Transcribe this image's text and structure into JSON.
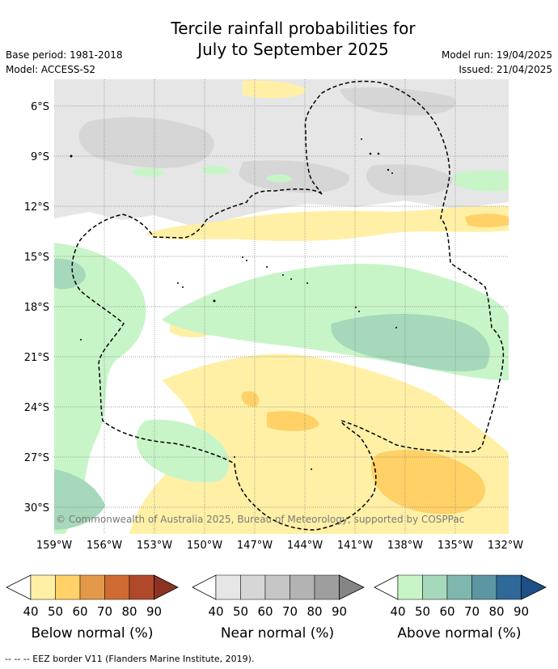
{
  "title_line1": "Tercile rainfall probabilities for",
  "title_line2": "July to September 2025",
  "base_period": "Base period: 1981-2018",
  "model": "Model: ACCESS-S2",
  "model_run": "Model run: 19/04/2025",
  "issued": "Issued: 21/04/2025",
  "copyright": "© Commonwealth of Australia 2025, Bureau of Meteorology, supported by COSPPac",
  "lat_labels": [
    "6°S",
    "9°S",
    "12°S",
    "15°S",
    "18°S",
    "21°S",
    "24°S",
    "27°S",
    "30°S"
  ],
  "lon_labels": [
    "159°W",
    "156°W",
    "153°W",
    "150°W",
    "147°W",
    "144°W",
    "141°W",
    "138°W",
    "135°W",
    "132°W"
  ],
  "colorbars": [
    {
      "label": "Below normal (%)",
      "ticks": [
        "40",
        "50",
        "60",
        "70",
        "80",
        "90"
      ],
      "colors": [
        "#fff0a6",
        "#ffd166",
        "#e3994a",
        "#cf6a33",
        "#b0492a",
        "#8c3222"
      ]
    },
    {
      "label": "Near normal (%)",
      "ticks": [
        "40",
        "50",
        "60",
        "70",
        "80",
        "90"
      ],
      "colors": [
        "#e6e6e6",
        "#d6d6d6",
        "#c6c6c6",
        "#b3b3b3",
        "#9e9e9e",
        "#858585"
      ]
    },
    {
      "label": "Above normal (%)",
      "ticks": [
        "40",
        "50",
        "60",
        "70",
        "80",
        "90"
      ],
      "colors": [
        "#c8f5c8",
        "#a6d8bb",
        "#7fb6ad",
        "#5c96a3",
        "#2f6999",
        "#1e4f86"
      ]
    }
  ],
  "footer": "--  --  -- EEZ border V11 (Flanders Marine Institute, 2019).",
  "colors": {
    "eez_border": "#000000",
    "gridline": "#7a7a7a"
  }
}
